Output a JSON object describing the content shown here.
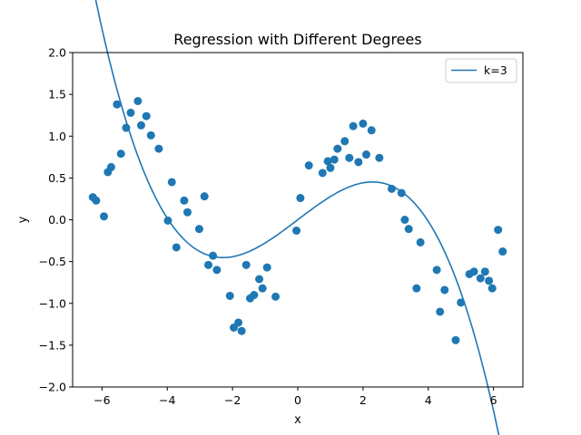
{
  "chart_data": {
    "type": "scatter",
    "title": "Regression with Different Degrees",
    "xlabel": "x",
    "ylabel": "y",
    "xlim": [
      -6.9,
      6.9
    ],
    "ylim": [
      -2.0,
      2.0
    ],
    "xticks": [
      -6,
      -4,
      -2,
      0,
      2,
      4,
      6
    ],
    "xtick_labels": [
      "−6",
      "−4",
      "−2",
      "0",
      "2",
      "4",
      "6"
    ],
    "yticks": [
      -2.0,
      -1.5,
      -1.0,
      -0.5,
      0.0,
      0.5,
      1.0,
      1.5,
      2.0
    ],
    "ytick_labels": [
      "−2.0",
      "−1.5",
      "−1.0",
      "−0.5",
      "0.0",
      "0.5",
      "1.0",
      "1.5",
      "2.0"
    ],
    "grid": false,
    "legend_position": "top-right",
    "colors": {
      "points": "#1f77b4",
      "line": "#1f77b4"
    },
    "scatter": {
      "x": [
        -6.28,
        -6.18,
        -5.94,
        -5.82,
        -5.72,
        -5.54,
        -5.42,
        -5.26,
        -5.12,
        -4.9,
        -4.8,
        -4.64,
        -4.5,
        -4.26,
        -3.98,
        -3.86,
        -3.72,
        -3.48,
        -3.38,
        -3.02,
        -2.86,
        -2.74,
        -2.6,
        -2.48,
        -2.08,
        -1.96,
        -1.82,
        -1.72,
        -1.58,
        -1.46,
        -1.34,
        -1.18,
        -1.08,
        -0.94,
        -0.68,
        -0.04,
        0.08,
        0.34,
        0.76,
        0.92,
        1.0,
        1.12,
        1.22,
        1.44,
        1.58,
        1.7,
        1.86,
        2.0,
        2.1,
        2.26,
        2.5,
        2.88,
        3.18,
        3.28,
        3.4,
        3.64,
        3.76,
        4.26,
        4.36,
        4.5,
        4.84,
        5.0,
        5.26,
        5.4,
        5.6,
        5.74,
        5.86,
        5.96,
        6.14,
        6.28
      ],
      "y": [
        0.27,
        0.23,
        0.04,
        0.57,
        0.63,
        1.38,
        0.79,
        1.1,
        1.28,
        1.42,
        1.13,
        1.24,
        1.01,
        0.85,
        -0.01,
        0.45,
        -0.33,
        0.23,
        0.09,
        -0.11,
        0.28,
        -0.54,
        -0.43,
        -0.6,
        -0.91,
        -1.29,
        -1.23,
        -1.33,
        -0.54,
        -0.94,
        -0.9,
        -0.71,
        -0.82,
        -0.57,
        -0.92,
        -0.13,
        0.26,
        0.65,
        0.56,
        0.7,
        0.62,
        0.72,
        0.85,
        0.94,
        0.74,
        1.12,
        0.69,
        1.15,
        0.78,
        1.07,
        0.74,
        0.37,
        0.32,
        0.0,
        -0.11,
        -0.82,
        -0.27,
        -0.6,
        -1.1,
        -0.84,
        -1.44,
        -0.99,
        -0.65,
        -0.62,
        -0.7,
        -0.62,
        -0.73,
        -0.82,
        -0.12,
        -0.38
      ]
    },
    "series": [
      {
        "name": "k=3",
        "degree": 3,
        "coefficients": [
          0.0,
          0.296,
          0.0,
          -0.0188
        ],
        "x_range": [
          -6.28,
          6.28
        ]
      }
    ]
  }
}
